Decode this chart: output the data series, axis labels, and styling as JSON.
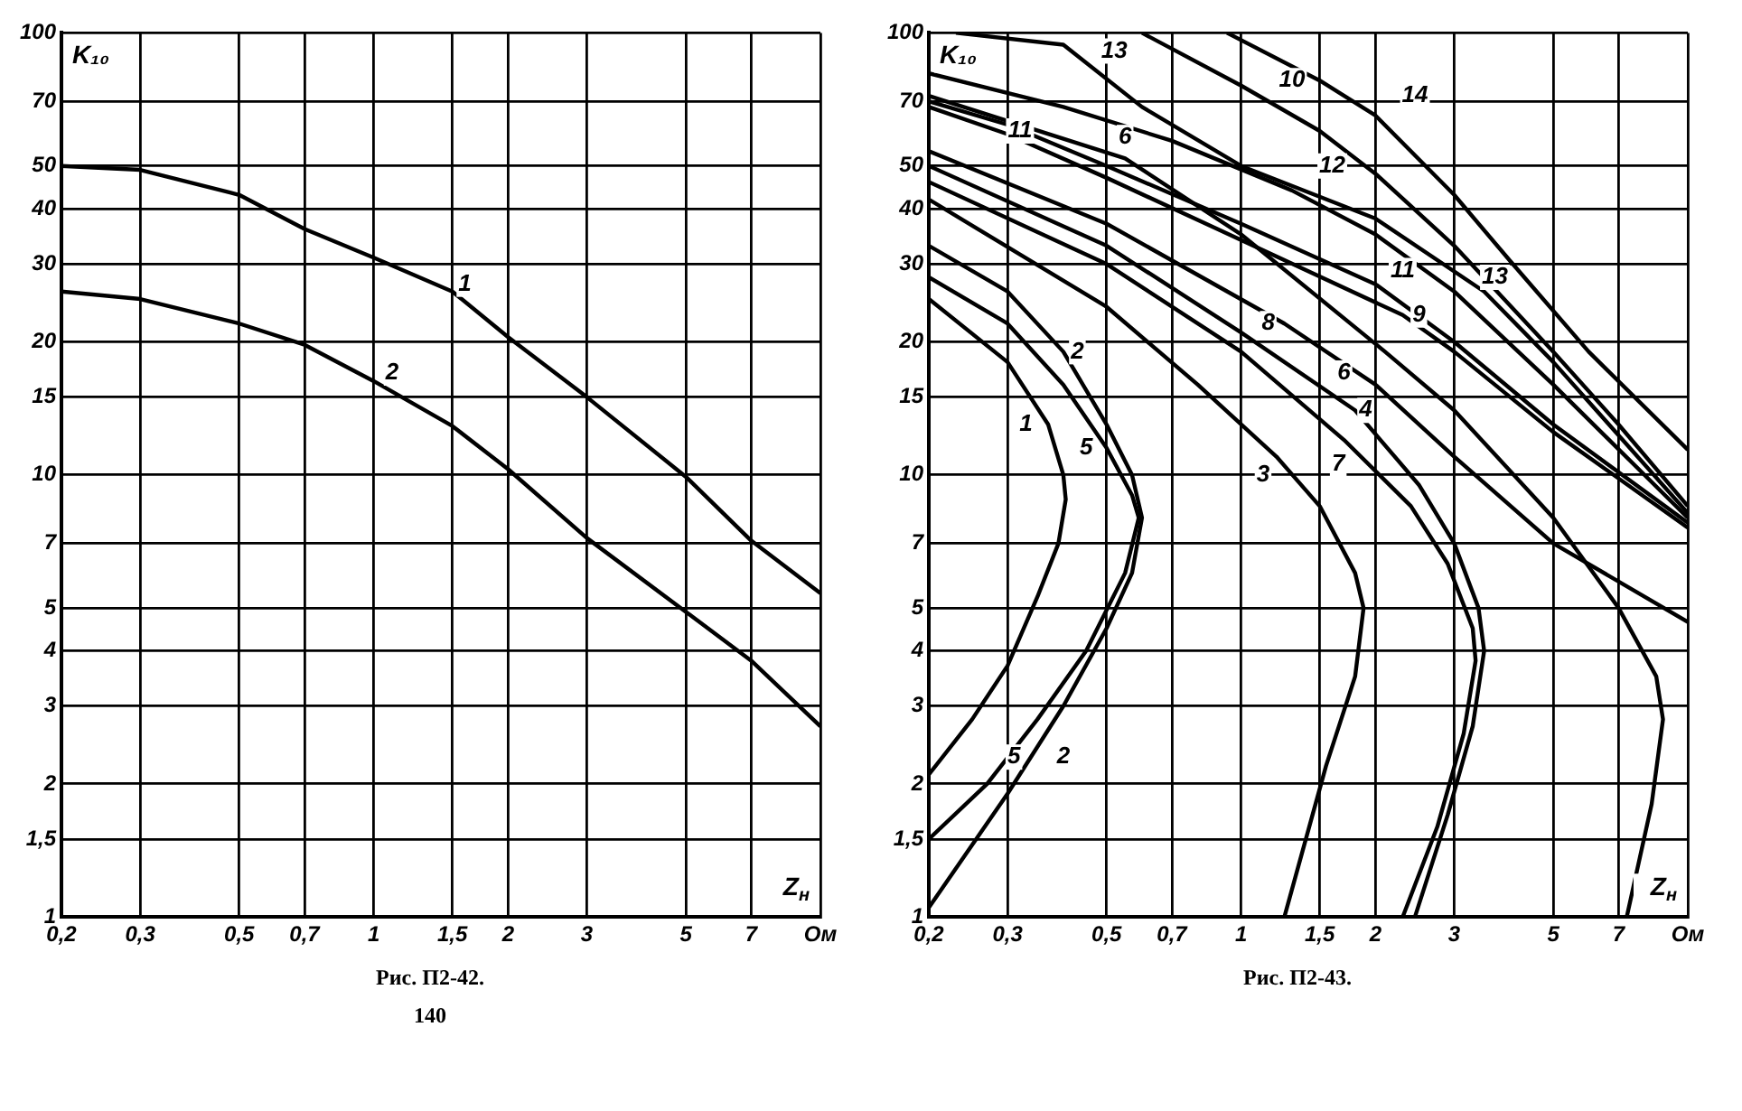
{
  "chart_data": [
    {
      "type": "line",
      "xlabel": "Z$_{н}$",
      "ylabel": "K₁₀",
      "log": "xy",
      "grid": true,
      "marker": "none",
      "line_style": "solid",
      "xlim": [
        0.2,
        10
      ],
      "ylim": [
        1,
        100
      ],
      "xticks": [
        {
          "value": 0.2,
          "label": "0,2"
        },
        {
          "value": 0.3,
          "label": "0,3"
        },
        {
          "value": 0.5,
          "label": "0,5"
        },
        {
          "value": 0.7,
          "label": "0,7"
        },
        1,
        {
          "value": 1.5,
          "label": "1,5"
        },
        2,
        3,
        5,
        7,
        {
          "value": 10,
          "label": "Ом"
        }
      ],
      "yticks": [
        1,
        {
          "value": 1.5,
          "label": "1,5"
        },
        2,
        3,
        4,
        5,
        7,
        10,
        15,
        20,
        30,
        40,
        50,
        70,
        100
      ],
      "series": [
        {
          "color": "#000000",
          "x": [
            0.2,
            0.3,
            0.5,
            0.7,
            1,
            1.5,
            2,
            3,
            5,
            7,
            10
          ],
          "values": [
            50,
            49,
            43,
            36,
            31,
            26,
            20.5,
            15,
            9.9,
            7.1,
            5.4
          ]
        },
        {
          "color": "#000000",
          "x": [
            0.2,
            0.3,
            0.5,
            0.7,
            1,
            1.5,
            2,
            3,
            5,
            7,
            10
          ],
          "values": [
            26,
            25,
            22,
            19.7,
            16.3,
            12.9,
            10.3,
            7.2,
            4.9,
            3.8,
            2.7
          ]
        }
      ],
      "annotations": [
        {
          "text": "1",
          "x": 1.6,
          "y": 27
        },
        {
          "text": "2",
          "x": 1.1,
          "y": 17
        },
        "Рис. П2-42.",
        "140"
      ]
    },
    {
      "type": "line",
      "xlabel": "Z$_{н}$",
      "ylabel": "K₁₀",
      "log": "xy",
      "grid": true,
      "marker": "none",
      "line_style": "solid",
      "xlim": [
        0.2,
        10
      ],
      "ylim": [
        1,
        100
      ],
      "xticks": [
        {
          "value": 0.2,
          "label": "0,2"
        },
        {
          "value": 0.3,
          "label": "0,3"
        },
        {
          "value": 0.5,
          "label": "0,5"
        },
        {
          "value": 0.7,
          "label": "0,7"
        },
        1,
        {
          "value": 1.5,
          "label": "1,5"
        },
        2,
        3,
        5,
        7,
        {
          "value": 10,
          "label": "Ом"
        }
      ],
      "yticks": [
        1,
        {
          "value": 1.5,
          "label": "1,5"
        },
        2,
        3,
        4,
        5,
        7,
        10,
        15,
        20,
        30,
        40,
        50,
        70,
        100
      ],
      "series": [
        {
          "color": "#000000",
          "x": [
            0.2,
            0.3,
            0.37,
            0.4,
            0.405,
            0.39,
            0.35,
            0.3,
            0.25,
            0.2
          ],
          "values": [
            25,
            18,
            13,
            10,
            8.8,
            7,
            5.3,
            3.7,
            2.8,
            2.1
          ]
        },
        {
          "color": "#000000",
          "x": [
            0.2,
            0.3,
            0.4,
            0.5,
            0.57,
            0.6,
            0.57,
            0.5,
            0.4,
            0.3,
            0.2
          ],
          "values": [
            33,
            26,
            19,
            13,
            10,
            8,
            6,
            4.5,
            3,
            1.9,
            1.05
          ]
        },
        {
          "color": "#000000",
          "x": [
            0.2,
            0.5,
            0.8,
            1.2,
            1.5,
            1.8,
            1.88,
            1.8,
            1.55,
            1.25
          ],
          "values": [
            42,
            24,
            16,
            11,
            8.5,
            6,
            5,
            3.5,
            2.2,
            1
          ]
        },
        {
          "color": "#000000",
          "x": [
            0.2,
            0.5,
            1,
            1.8,
            2.5,
            3,
            3.4,
            3.5,
            3.3,
            2.9,
            2.45
          ],
          "values": [
            50,
            33,
            21,
            14,
            9.5,
            7,
            5,
            4,
            2.7,
            1.7,
            1
          ]
        },
        {
          "color": "#000000",
          "x": [
            0.2,
            0.3,
            0.4,
            0.5,
            0.57,
            0.59,
            0.55,
            0.45,
            0.35,
            0.27,
            0.2
          ],
          "values": [
            28,
            22,
            16,
            11.5,
            9,
            8,
            6,
            4,
            2.8,
            2,
            1.5
          ]
        },
        {
          "color": "#000000",
          "x": [
            0.2,
            0.55,
            1,
            2.1,
            3,
            5,
            7,
            8.5,
            8.8,
            8.3,
            7.3
          ],
          "values": [
            72,
            52,
            35,
            19,
            14,
            8,
            5,
            3.5,
            2.8,
            1.8,
            1
          ]
        },
        {
          "color": "#000000",
          "x": [
            0.2,
            0.5,
            1,
            1.7,
            2.4,
            2.9,
            3.3,
            3.35,
            3.15,
            2.75,
            2.3
          ],
          "values": [
            46,
            30,
            19,
            12,
            8.5,
            6.3,
            4.5,
            3.8,
            2.6,
            1.6,
            1
          ]
        },
        {
          "color": "#000000",
          "x": [
            0.2,
            0.5,
            1.25,
            2,
            3,
            5,
            10
          ],
          "values": [
            54,
            37,
            22,
            16,
            11,
            7,
            4.65
          ]
        },
        {
          "color": "#000000",
          "x": [
            0.2,
            0.3,
            0.5,
            1,
            2.3,
            3,
            5,
            10
          ],
          "values": [
            68,
            59,
            47,
            34,
            23,
            19,
            12.5,
            7.6
          ]
        },
        {
          "color": "#000000",
          "x": [
            0.6,
            1,
            1.5,
            2,
            3,
            5,
            7,
            10
          ],
          "values": [
            100,
            76,
            60,
            48,
            33,
            19,
            13,
            8.5
          ]
        },
        {
          "color": "#000000",
          "x": [
            0.2,
            0.3,
            0.5,
            1,
            2,
            3,
            5,
            10
          ],
          "values": [
            70,
            62,
            50,
            37,
            27,
            20,
            13,
            7.8
          ]
        },
        {
          "color": "#000000",
          "x": [
            0.2,
            0.4,
            0.7,
            1.3,
            2,
            3,
            5,
            10
          ],
          "values": [
            81,
            68,
            57,
            44,
            35,
            26,
            16,
            8
          ]
        },
        {
          "color": "#000000",
          "x": [
            0.23,
            0.4,
            0.6,
            1,
            2,
            3.5,
            5,
            10
          ],
          "values": [
            100,
            94,
            68,
            50,
            38,
            26,
            18,
            8.2
          ]
        },
        {
          "color": "#000000",
          "x": [
            0.93,
            1.5,
            2,
            3,
            4,
            6,
            10
          ],
          "values": [
            100,
            78,
            65,
            43,
            30.5,
            19,
            11.4
          ]
        }
      ],
      "annotations": [
        {
          "text": "13",
          "x": 0.52,
          "y": 91
        },
        {
          "text": "13",
          "x": 3.7,
          "y": 28
        },
        {
          "text": "10",
          "x": 1.3,
          "y": 78
        },
        {
          "text": "14",
          "x": 2.45,
          "y": 72
        },
        {
          "text": "11",
          "x": 0.32,
          "y": 60
        },
        {
          "text": "11",
          "x": 2.3,
          "y": 29
        },
        {
          "text": "6",
          "x": 0.55,
          "y": 58
        },
        {
          "text": "6",
          "x": 1.7,
          "y": 17
        },
        {
          "text": "12",
          "x": 1.6,
          "y": 50
        },
        {
          "text": "8",
          "x": 1.15,
          "y": 22
        },
        {
          "text": "9",
          "x": 2.5,
          "y": 23
        },
        {
          "text": "4",
          "x": 1.9,
          "y": 14
        },
        {
          "text": "7",
          "x": 1.65,
          "y": 10.6
        },
        {
          "text": "3",
          "x": 1.12,
          "y": 10
        },
        {
          "text": "2",
          "x": 0.43,
          "y": 19
        },
        {
          "text": "2",
          "x": 0.4,
          "y": 2.3
        },
        {
          "text": "1",
          "x": 0.33,
          "y": 13
        },
        {
          "text": "5",
          "x": 0.45,
          "y": 11.5
        },
        {
          "text": "5",
          "x": 0.31,
          "y": 2.3
        },
        "Рис. П2-43."
      ]
    }
  ]
}
